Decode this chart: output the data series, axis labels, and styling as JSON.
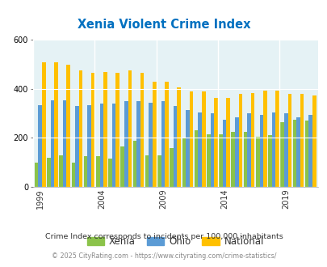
{
  "title": "Xenia Violent Crime Index",
  "years": [
    1999,
    2000,
    2001,
    2002,
    2003,
    2004,
    2005,
    2006,
    2007,
    2008,
    2009,
    2010,
    2011,
    2012,
    2013,
    2014,
    2015,
    2016,
    2017,
    2018,
    2019,
    2020,
    2021
  ],
  "xenia": [
    100,
    120,
    130,
    100,
    125,
    125,
    115,
    165,
    190,
    130,
    130,
    160,
    200,
    230,
    215,
    215,
    225,
    225,
    205,
    210,
    265,
    275,
    270
  ],
  "ohio": [
    335,
    355,
    355,
    330,
    335,
    340,
    340,
    350,
    350,
    345,
    350,
    330,
    315,
    305,
    300,
    275,
    285,
    300,
    295,
    305,
    300,
    285,
    295
  ],
  "national": [
    510,
    510,
    500,
    475,
    465,
    470,
    465,
    475,
    465,
    430,
    430,
    405,
    390,
    390,
    365,
    365,
    380,
    385,
    395,
    395,
    380,
    380,
    375
  ],
  "xenia_color": "#8bc34a",
  "ohio_color": "#5b9bd5",
  "national_color": "#ffc000",
  "bg_color": "#e5f2f5",
  "title_color": "#0070c0",
  "ylabel_max": 600,
  "yticks": [
    0,
    200,
    400,
    600
  ],
  "xtick_years": [
    1999,
    2004,
    2009,
    2014,
    2019
  ],
  "subtitle": "Crime Index corresponds to incidents per 100,000 inhabitants",
  "footer": "© 2025 CityRating.com - https://www.cityrating.com/crime-statistics/",
  "legend_labels": [
    "Xenia",
    "Ohio",
    "National"
  ],
  "legend_colors": [
    "#8bc34a",
    "#5b9bd5",
    "#ffc000"
  ]
}
